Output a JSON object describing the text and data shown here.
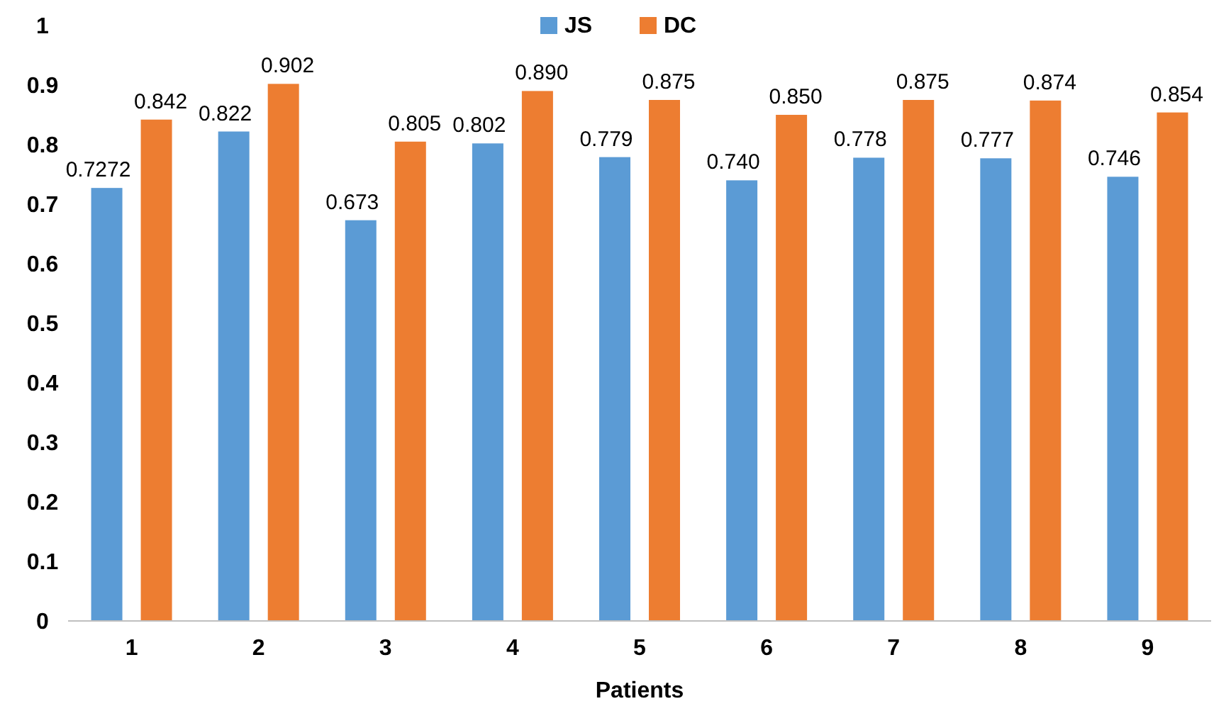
{
  "chart_data": {
    "type": "bar",
    "xlabel": "Patients",
    "categories": [
      "1",
      "2",
      "3",
      "4",
      "5",
      "6",
      "7",
      "8",
      "9"
    ],
    "series": [
      {
        "name": "JS",
        "color": "#5b9bd5",
        "values": [
          0.7272,
          0.822,
          0.673,
          0.802,
          0.779,
          0.74,
          0.778,
          0.777,
          0.746
        ],
        "value_labels": [
          "0.7272",
          "0.822",
          "0.673",
          "0.802",
          "0.779",
          "0.740",
          "0.778",
          "0.777",
          "0.746"
        ]
      },
      {
        "name": "DC",
        "color": "#ed7d31",
        "values": [
          0.842,
          0.902,
          0.805,
          0.89,
          0.875,
          0.85,
          0.875,
          0.874,
          0.854
        ],
        "value_labels": [
          "0.842",
          "0.902",
          "0.805",
          "0.890",
          "0.875",
          "0.850",
          "0.875",
          "0.874",
          "0.854"
        ]
      }
    ],
    "ylim": [
      0,
      1
    ],
    "yticks": [
      0,
      0.1,
      0.2,
      0.3,
      0.4,
      0.5,
      0.6,
      0.7,
      0.8,
      0.9,
      1
    ],
    "grid": false,
    "legend": "top"
  }
}
